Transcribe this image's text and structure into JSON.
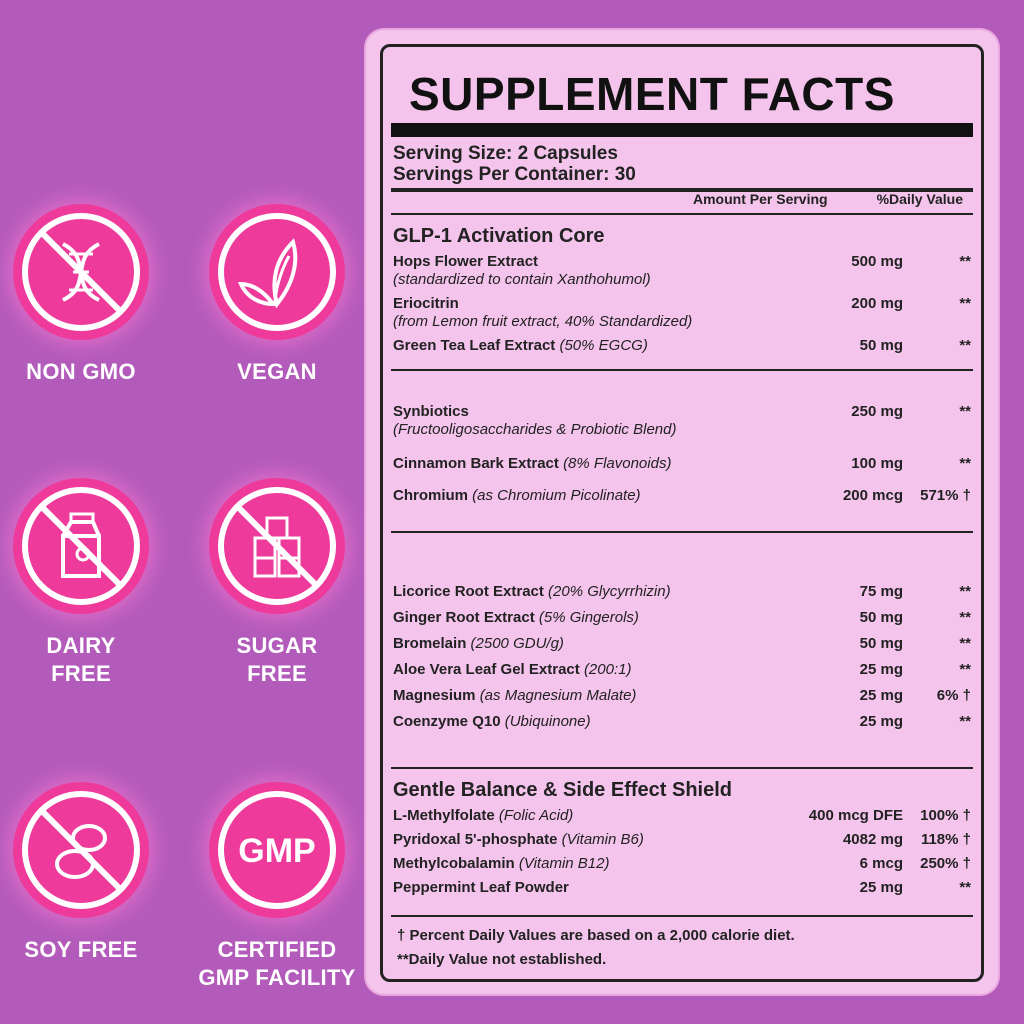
{
  "badges": [
    {
      "label": "NON GMO",
      "icon": "dna-icon"
    },
    {
      "label": "VEGAN",
      "icon": "leaf-icon"
    },
    {
      "label": "DAIRY\nFREE",
      "icon": "milk-carton-icon"
    },
    {
      "label": "SUGAR\nFREE",
      "icon": "sugar-cubes-icon"
    },
    {
      "label": "SOY FREE",
      "icon": "soybean-icon"
    },
    {
      "label": "CERTIFIED\nGMP FACILITY",
      "icon": "gmp-icon",
      "icon_text": "GMP"
    }
  ],
  "facts": {
    "title": "SUPPLEMENT FACTS",
    "serving_size": "Serving Size: 2 Capsules",
    "servings_per_container": "Servings Per Container: 30",
    "col_amount": "Amount Per Serving",
    "col_dv": "%Daily Value",
    "section1_title": "GLP-1 Activation Core",
    "section1": [
      {
        "name": "Hops Flower Extract",
        "sub": "(standardized to contain Xanthohumol)",
        "amount": "500 mg",
        "dv": "**"
      },
      {
        "name": "Eriocitrin",
        "sub": "(from Lemon fruit extract, 40% Standardized)",
        "amount": "200 mg",
        "dv": "**"
      },
      {
        "name": "Green Tea Leaf Extract",
        "note": "(50% EGCG)",
        "amount": "50 mg",
        "dv": "**"
      }
    ],
    "section2": [
      {
        "name": "Synbiotics",
        "sub": "(Fructooligosaccharides & Probiotic Blend)",
        "amount": "250 mg",
        "dv": "**"
      },
      {
        "name": "Cinnamon Bark Extract",
        "note": "(8% Flavonoids)",
        "amount": "100 mg",
        "dv": "**"
      },
      {
        "name": "Chromium",
        "note": "(as Chromium Picolinate)",
        "amount": "200 mcg",
        "dv": "571% †"
      }
    ],
    "section3": [
      {
        "name": "Licorice Root Extract",
        "note": "(20% Glycyrrhizin)",
        "amount": "75 mg",
        "dv": "**"
      },
      {
        "name": "Ginger Root Extract",
        "note": " (5% Gingerols)",
        "amount": "50 mg",
        "dv": "**"
      },
      {
        "name": "Bromelain",
        "note": " (2500 GDU/g)",
        "amount": "50 mg",
        "dv": "**"
      },
      {
        "name": "Aloe Vera Leaf Gel Extract",
        "note": "(200:1)",
        "amount": "25 mg",
        "dv": "**"
      },
      {
        "name": "Magnesium",
        "note": "(as Magnesium Malate)",
        "amount": "25 mg",
        "dv": "6% †"
      },
      {
        "name": "Coenzyme Q10",
        "note": "(Ubiquinone)",
        "amount": "25 mg",
        "dv": "**"
      }
    ],
    "section4_title": "Gentle Balance & Side Effect Shield",
    "section4": [
      {
        "name": "L-Methylfolate",
        "note": " (Folic Acid)",
        "amount": "400 mcg DFE",
        "dv": "100% †"
      },
      {
        "name": "Pyridoxal 5'-phosphate",
        "note": "(Vitamin B6)",
        "amount": "4082 mg",
        "dv": "118% †"
      },
      {
        "name": "Methylcobalamin",
        "note": "(Vitamin B12)",
        "amount": "6 mcg",
        "dv": "250% †"
      },
      {
        "name": "Peppermint Leaf Powder",
        "note": "",
        "amount": "25 mg",
        "dv": "**"
      }
    ],
    "footnote1": "† Percent Daily Values are based on a 2,000 calorie diet.",
    "footnote2": "**Daily Value not established."
  },
  "colors": {
    "background": "#b35bbb",
    "badge": "#ee3a9a",
    "panel": "#f4c4ec"
  }
}
